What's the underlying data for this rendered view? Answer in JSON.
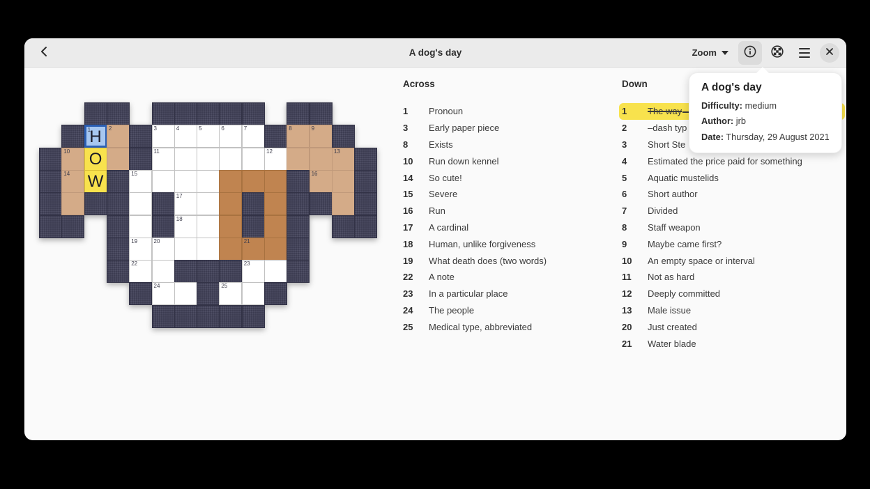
{
  "window": {
    "title": "A dog's day"
  },
  "header": {
    "title": "A dog's day",
    "zoom_button": {
      "label": "Zoom",
      "caret_icon": "chevron-down-icon"
    },
    "icons": [
      "back-icon",
      "info-icon",
      "crossword-ball-icon",
      "hamburger-menu-icon",
      "close-icon"
    ],
    "info_button_active": true
  },
  "popover": {
    "title": "A dog's day",
    "fields": [
      {
        "label": "Difficulty:",
        "value": "medium"
      },
      {
        "label": "Author:",
        "value": "jrb"
      },
      {
        "label": "Date:",
        "value": "Thursday, 29 August 2021"
      }
    ]
  },
  "clues": {
    "across_heading": "Across",
    "down_heading": "Down",
    "across": [
      {
        "num": "1",
        "text": "Pronoun"
      },
      {
        "num": "3",
        "text": "Early paper piece"
      },
      {
        "num": "8",
        "text": "Exists"
      },
      {
        "num": "10",
        "text": "Run down kennel"
      },
      {
        "num": "14",
        "text": "So cute!"
      },
      {
        "num": "15",
        "text": "Severe"
      },
      {
        "num": "16",
        "text": "Run"
      },
      {
        "num": "17",
        "text": "A cardinal"
      },
      {
        "num": "18",
        "text": "Human, unlike forgiveness"
      },
      {
        "num": "19",
        "text": "What death does (two words)"
      },
      {
        "num": "22",
        "text": "A note"
      },
      {
        "num": "23",
        "text": "In a particular place"
      },
      {
        "num": "24",
        "text": "The people"
      },
      {
        "num": "25",
        "text": "Medical type, abbreviated"
      }
    ],
    "down": [
      {
        "num": "1",
        "text": "The way",
        "selected": true,
        "solved": true,
        "truncated": true
      },
      {
        "num": "2",
        "text": "–dash typ",
        "truncated": true
      },
      {
        "num": "3",
        "text": "Short Ste",
        "truncated": true
      },
      {
        "num": "4",
        "text": "Estimated the price paid for something"
      },
      {
        "num": "5",
        "text": "Aquatic mustelids"
      },
      {
        "num": "6",
        "text": "Short author"
      },
      {
        "num": "7",
        "text": "Divided"
      },
      {
        "num": "8",
        "text": "Staff weapon"
      },
      {
        "num": "9",
        "text": "Maybe came first?"
      },
      {
        "num": "10",
        "text": "An empty space or interval"
      },
      {
        "num": "11",
        "text": "Not as hard"
      },
      {
        "num": "12",
        "text": "Deeply committed"
      },
      {
        "num": "13",
        "text": "Male issue"
      },
      {
        "num": "20",
        "text": "Just created"
      },
      {
        "num": "21",
        "text": "Water blade"
      }
    ]
  },
  "grid": {
    "cols": 15,
    "rows": 10,
    "legend": {
      "K": "block",
      "W": "white",
      "T": "tan",
      "N": "brown",
      "Y": "selected-yellow",
      "B": "cursor-blue",
      ".": "empty"
    },
    "cells": [
      "..KK.KKKKK.KK..",
      ".KBTKWWWWWKTTK.",
      "KTYTKWWWWWWTTTK",
      "KTYKWWWWNNNKTTK",
      "KTKKWKWWNKNKKTK",
      "KK.KWKWWNKNK.KK",
      "...KWWWWNNNK...",
      "...KWWKKKWWK...",
      "....KWWKWWK....",
      ".....KKKKK....."
    ],
    "numbers": [
      {
        "n": "1",
        "r": 1,
        "c": 2
      },
      {
        "n": "2",
        "r": 1,
        "c": 3
      },
      {
        "n": "3",
        "r": 1,
        "c": 5
      },
      {
        "n": "4",
        "r": 1,
        "c": 6
      },
      {
        "n": "5",
        "r": 1,
        "c": 7
      },
      {
        "n": "6",
        "r": 1,
        "c": 8
      },
      {
        "n": "7",
        "r": 1,
        "c": 9
      },
      {
        "n": "8",
        "r": 1,
        "c": 11
      },
      {
        "n": "9",
        "r": 1,
        "c": 12
      },
      {
        "n": "10",
        "r": 2,
        "c": 1
      },
      {
        "n": "11",
        "r": 2,
        "c": 5
      },
      {
        "n": "12",
        "r": 2,
        "c": 10
      },
      {
        "n": "13",
        "r": 2,
        "c": 13
      },
      {
        "n": "14",
        "r": 3,
        "c": 1
      },
      {
        "n": "15",
        "r": 3,
        "c": 4
      },
      {
        "n": "16",
        "r": 3,
        "c": 12
      },
      {
        "n": "17",
        "r": 4,
        "c": 6
      },
      {
        "n": "18",
        "r": 5,
        "c": 6
      },
      {
        "n": "19",
        "r": 6,
        "c": 4
      },
      {
        "n": "20",
        "r": 6,
        "c": 5
      },
      {
        "n": "21",
        "r": 6,
        "c": 9
      },
      {
        "n": "22",
        "r": 7,
        "c": 4
      },
      {
        "n": "23",
        "r": 7,
        "c": 9
      },
      {
        "n": "24",
        "r": 8,
        "c": 5
      },
      {
        "n": "25",
        "r": 8,
        "c": 8
      }
    ],
    "letters": [
      {
        "r": 1,
        "c": 2,
        "ch": "H"
      },
      {
        "r": 2,
        "c": 2,
        "ch": "O"
      },
      {
        "r": 3,
        "c": 2,
        "ch": "W"
      }
    ],
    "colors": {
      "block": "#3d3d52",
      "white": "#ffffff",
      "tan": "#d4ab88",
      "brown": "#c08450",
      "selection_yellow": "#f8e24d",
      "cursor_blue_bg": "#a7c7f0",
      "cursor_blue_border": "#2b5fb4"
    }
  }
}
